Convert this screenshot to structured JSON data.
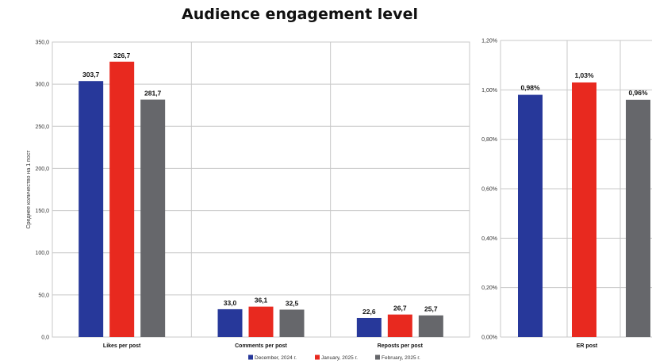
{
  "title": "Audience engagement level",
  "colors": {
    "December": "#27389a",
    "January": "#e8291f",
    "February": "#66676b",
    "grid": "#c8c8c8"
  },
  "chart_data": [
    {
      "type": "bar",
      "ylabel": "Среднее количество на 1 пост",
      "ylim": [
        0,
        350
      ],
      "yticks": [
        "0,0",
        "50,0",
        "100,0",
        "150,0",
        "200,0",
        "250,0",
        "300,0",
        "350,0"
      ],
      "categories": [
        "Likes per post",
        "Comments per post",
        "Reposts per post"
      ],
      "series": [
        {
          "name": "December, 2024 г.",
          "values": [
            303.7,
            33.0,
            22.6
          ],
          "labels": [
            "303,7",
            "33,0",
            "22,6"
          ]
        },
        {
          "name": "January, 2025 г.",
          "values": [
            326.7,
            36.1,
            26.7
          ],
          "labels": [
            "326,7",
            "36,1",
            "26,7"
          ]
        },
        {
          "name": "February, 2025 г.",
          "values": [
            281.7,
            32.5,
            25.7
          ],
          "labels": [
            "281,7",
            "32,5",
            "25,7"
          ]
        }
      ],
      "grid": true,
      "legend": "bottom"
    },
    {
      "type": "bar",
      "ylim": [
        0,
        1.2
      ],
      "yticks": [
        "0,00%",
        "0,20%",
        "0,40%",
        "0,60%",
        "0,80%",
        "1,00%",
        "1,20%"
      ],
      "categories": [
        "ER post"
      ],
      "series": [
        {
          "name": "December, 2024 г.",
          "values": [
            0.98
          ],
          "labels": [
            "0,98%"
          ]
        },
        {
          "name": "January, 2025 г.",
          "values": [
            1.03
          ],
          "labels": [
            "1,03%"
          ]
        },
        {
          "name": "February, 2025 г.",
          "values": [
            0.96
          ],
          "labels": [
            "0,96%"
          ]
        }
      ],
      "grid": true
    }
  ]
}
